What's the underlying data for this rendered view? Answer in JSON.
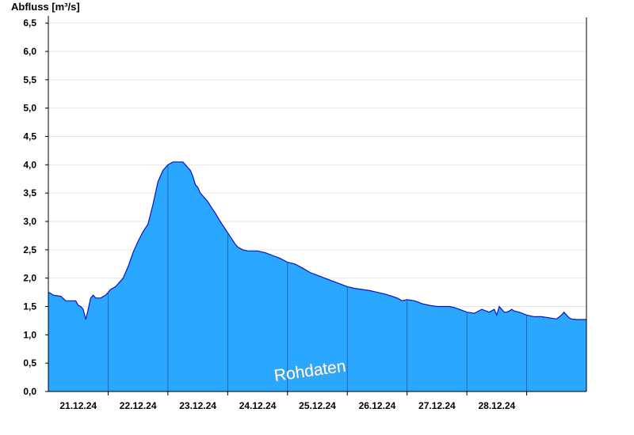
{
  "chart_data": {
    "type": "area",
    "title": "",
    "ylabel": "Abfluss [m³/s]",
    "xlabel": "",
    "watermark": "Rohdaten",
    "ylim": [
      0,
      6.6
    ],
    "xlim": [
      "2024-12-20",
      "2024-12-29"
    ],
    "grid": true,
    "colors": {
      "fill": "#2aa7ff",
      "line": "#0a10c8",
      "grid": "#e6e6e6",
      "axis": "#000000"
    },
    "y_ticks": [
      "0,0",
      "0,5",
      "1,0",
      "1,5",
      "2,0",
      "2,5",
      "3,0",
      "3,5",
      "4,0",
      "4,5",
      "5,0",
      "5,5",
      "6,0",
      "6,5"
    ],
    "x_ticks": [
      "21.12.24",
      "22.12.24",
      "23.12.24",
      "24.12.24",
      "25.12.24",
      "26.12.24",
      "27.12.24",
      "28.12.24"
    ],
    "day_separators": [
      "2024-12-21",
      "2024-12-22",
      "2024-12-23",
      "2024-12-24",
      "2024-12-25",
      "2024-12-26",
      "2024-12-27",
      "2024-12-28"
    ],
    "series": [
      {
        "x": [
          "2024-12-20 00:00",
          "2024-12-20 01:00",
          "2024-12-20 02:00",
          "2024-12-20 05:00",
          "2024-12-20 07:00",
          "2024-12-20 11:00",
          "2024-12-20 12:00",
          "2024-12-20 13:00",
          "2024-12-20 14:00",
          "2024-12-20 15:00",
          "2024-12-20 16:00",
          "2024-12-20 17:00",
          "2024-12-20 18:00",
          "2024-12-20 19:00",
          "2024-12-20 20:00",
          "2024-12-20 21:00",
          "2024-12-20 23:00",
          "2024-12-21 00:00",
          "2024-12-21 01:00",
          "2024-12-21 03:00",
          "2024-12-21 05:00",
          "2024-12-21 06:00",
          "2024-12-21 08:00",
          "2024-12-21 10:00",
          "2024-12-21 12:00",
          "2024-12-21 14:00",
          "2024-12-21 16:00",
          "2024-12-21 18:00",
          "2024-12-21 20:00",
          "2024-12-21 22:00",
          "2024-12-22 00:00",
          "2024-12-22 02:00",
          "2024-12-22 04:00",
          "2024-12-22 05:00",
          "2024-12-22 06:00",
          "2024-12-22 07:00",
          "2024-12-22 08:00",
          "2024-12-22 09:00",
          "2024-12-22 10:00",
          "2024-12-22 11:00",
          "2024-12-22 12:00",
          "2024-12-22 13:00",
          "2024-12-22 14:00",
          "2024-12-22 15:00",
          "2024-12-22 16:00",
          "2024-12-22 17:00",
          "2024-12-22 19:00",
          "2024-12-22 21:00",
          "2024-12-23 03:00",
          "2024-12-23 04:00",
          "2024-12-23 06:00",
          "2024-12-23 08:00",
          "2024-12-23 10:00",
          "2024-12-23 12:00",
          "2024-12-23 15:00",
          "2024-12-23 18:00",
          "2024-12-23 21:00",
          "2024-12-24 00:00",
          "2024-12-24 03:00",
          "2024-12-24 06:00",
          "2024-12-24 09:00",
          "2024-12-24 12:00",
          "2024-12-24 15:00",
          "2024-12-24 18:00",
          "2024-12-24 21:00",
          "2024-12-25 00:00",
          "2024-12-25 03:00",
          "2024-12-25 06:00",
          "2024-12-25 09:00",
          "2024-12-25 12:00",
          "2024-12-25 15:00",
          "2024-12-25 18:00",
          "2024-12-25 20:00",
          "2024-12-25 22:00",
          "2024-12-26 00:00",
          "2024-12-26 03:00",
          "2024-12-26 06:00",
          "2024-12-26 09:00",
          "2024-12-26 12:00",
          "2024-12-26 15:00",
          "2024-12-26 17:00",
          "2024-12-26 19:00",
          "2024-12-26 21:00",
          "2024-12-27 00:00",
          "2024-12-27 03:00",
          "2024-12-27 06:00",
          "2024-12-27 09:00",
          "2024-12-27 11:00",
          "2024-12-27 12:00",
          "2024-12-27 13:00",
          "2024-12-27 14:00",
          "2024-12-27 15:00",
          "2024-12-27 16:00",
          "2024-12-27 17:00",
          "2024-12-27 18:00",
          "2024-12-27 19:00",
          "2024-12-27 21:00",
          "2024-12-28 00:00",
          "2024-12-28 03:00",
          "2024-12-28 06:00",
          "2024-12-28 09:00",
          "2024-12-28 12:00",
          "2024-12-28 14:00",
          "2024-12-28 15:00",
          "2024-12-28 16:00",
          "2024-12-28 17:00",
          "2024-12-28 18:00",
          "2024-12-28 20:00",
          "2024-12-28 22:00",
          "2024-12-29 00:00"
        ],
        "y": [
          1.75,
          1.73,
          1.7,
          1.68,
          1.6,
          1.6,
          1.52,
          1.5,
          1.45,
          1.27,
          1.45,
          1.65,
          1.7,
          1.65,
          1.65,
          1.65,
          1.7,
          1.75,
          1.8,
          1.85,
          1.95,
          2.0,
          2.2,
          2.45,
          2.65,
          2.82,
          2.95,
          3.3,
          3.7,
          3.9,
          4.0,
          4.05,
          4.05,
          4.05,
          4.05,
          4.0,
          3.95,
          3.9,
          3.8,
          3.65,
          3.6,
          3.5,
          3.45,
          3.4,
          3.35,
          3.28,
          3.15,
          3.0,
          2.6,
          2.55,
          2.5,
          2.48,
          2.48,
          2.48,
          2.45,
          2.4,
          2.35,
          2.28,
          2.25,
          2.18,
          2.1,
          2.05,
          2.0,
          1.95,
          1.9,
          1.85,
          1.82,
          1.8,
          1.78,
          1.75,
          1.72,
          1.68,
          1.65,
          1.6,
          1.62,
          1.6,
          1.55,
          1.52,
          1.5,
          1.5,
          1.5,
          1.48,
          1.45,
          1.4,
          1.38,
          1.45,
          1.4,
          1.45,
          1.35,
          1.5,
          1.45,
          1.4,
          1.4,
          1.42,
          1.45,
          1.42,
          1.4,
          1.35,
          1.32,
          1.32,
          1.3,
          1.28,
          1.35,
          1.4,
          1.35,
          1.3,
          1.28,
          1.27,
          1.27,
          1.27
        ]
      }
    ]
  }
}
